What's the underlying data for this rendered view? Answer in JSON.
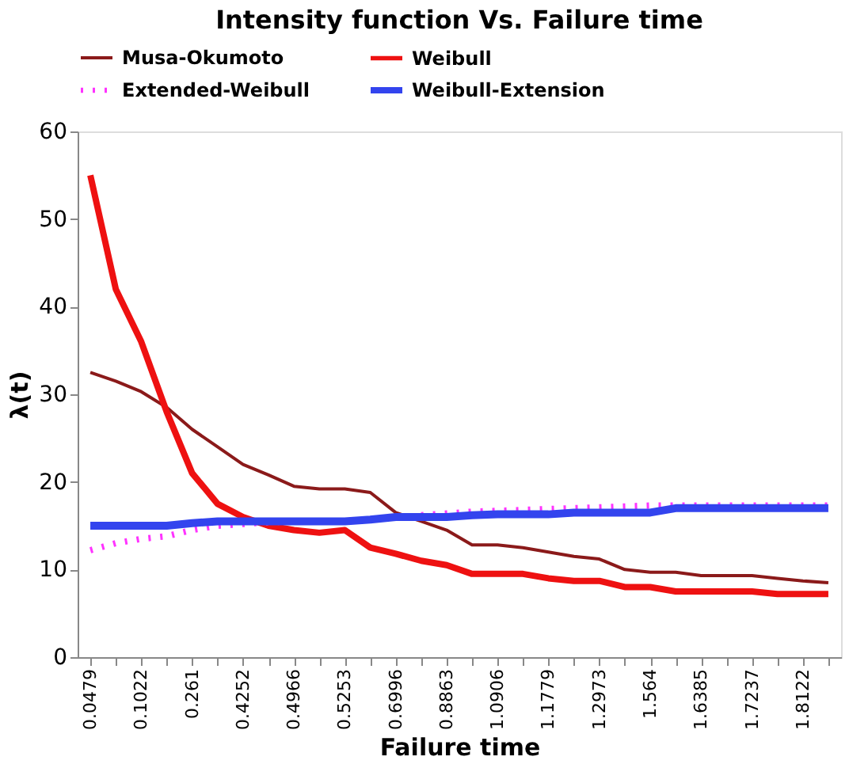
{
  "chart_data": {
    "type": "line",
    "title": "Intensity function  Vs. Failure time",
    "xlabel": "Failure time",
    "ylabel": "λ(t)",
    "categories": [
      "0.0479",
      null,
      "0.1022",
      null,
      "0.261",
      null,
      "0.4252",
      null,
      "0.4966",
      null,
      "0.5253",
      null,
      "0.6996",
      null,
      "0.8863",
      null,
      "1.0906",
      null,
      "1.1779",
      null,
      "1.2973",
      null,
      "1.564",
      null,
      "1.6385",
      null,
      "1.7237",
      null,
      "1.8122",
      null
    ],
    "series": [
      {
        "name": "Musa-Okumoto",
        "color": "#8b1a1a",
        "line_style": "solid",
        "values": [
          32.5,
          31.5,
          30.3,
          28.5,
          26,
          24,
          22,
          20.8,
          19.5,
          19.2,
          19.2,
          18.8,
          16.5,
          15.5,
          14.5,
          12.8,
          12.8,
          12.5,
          12,
          11.5,
          11.2,
          10,
          9.7,
          9.7,
          9.3,
          9.3,
          9.3,
          9,
          8.7,
          8.5
        ]
      },
      {
        "name": "Weibull",
        "color": "#ee1111",
        "line_style": "solid",
        "values": [
          55,
          42,
          36,
          28,
          21,
          17.5,
          16,
          15,
          14.5,
          14.2,
          14.5,
          12.5,
          11.8,
          11,
          10.5,
          9.5,
          9.5,
          9.5,
          9,
          8.7,
          8.7,
          8,
          8,
          7.5,
          7.5,
          7.5,
          7.5,
          7.2,
          7.2,
          7.2
        ]
      },
      {
        "name": "Extended-Weibull",
        "color": "#ff33ff",
        "line_style": "dotted",
        "values": [
          12.2,
          13,
          13.5,
          13.8,
          14.5,
          15,
          15.2,
          15.4,
          15.5,
          null,
          null,
          null,
          null,
          16.2,
          16.4,
          16.6,
          16.7,
          16.8,
          16.9,
          17,
          17.1,
          17.2,
          17.3,
          17.3,
          17.3,
          17.3,
          17.3,
          17.3,
          17.3,
          17.3
        ]
      },
      {
        "name": "Weibull-Extension",
        "color": "#3344ee",
        "line_style": "solid",
        "values": [
          15,
          15,
          15,
          15,
          15.3,
          15.5,
          15.5,
          15.5,
          15.5,
          15.5,
          15.5,
          15.7,
          16,
          16,
          16,
          16.2,
          16.3,
          16.3,
          16.3,
          16.5,
          16.5,
          16.5,
          16.5,
          17,
          17,
          17,
          17,
          17,
          17,
          17
        ]
      }
    ],
    "ylim": [
      0,
      60
    ],
    "yticks": [
      0,
      10,
      20,
      30,
      40,
      50,
      60
    ],
    "grid": false,
    "legend": "top",
    "marker": "none"
  }
}
